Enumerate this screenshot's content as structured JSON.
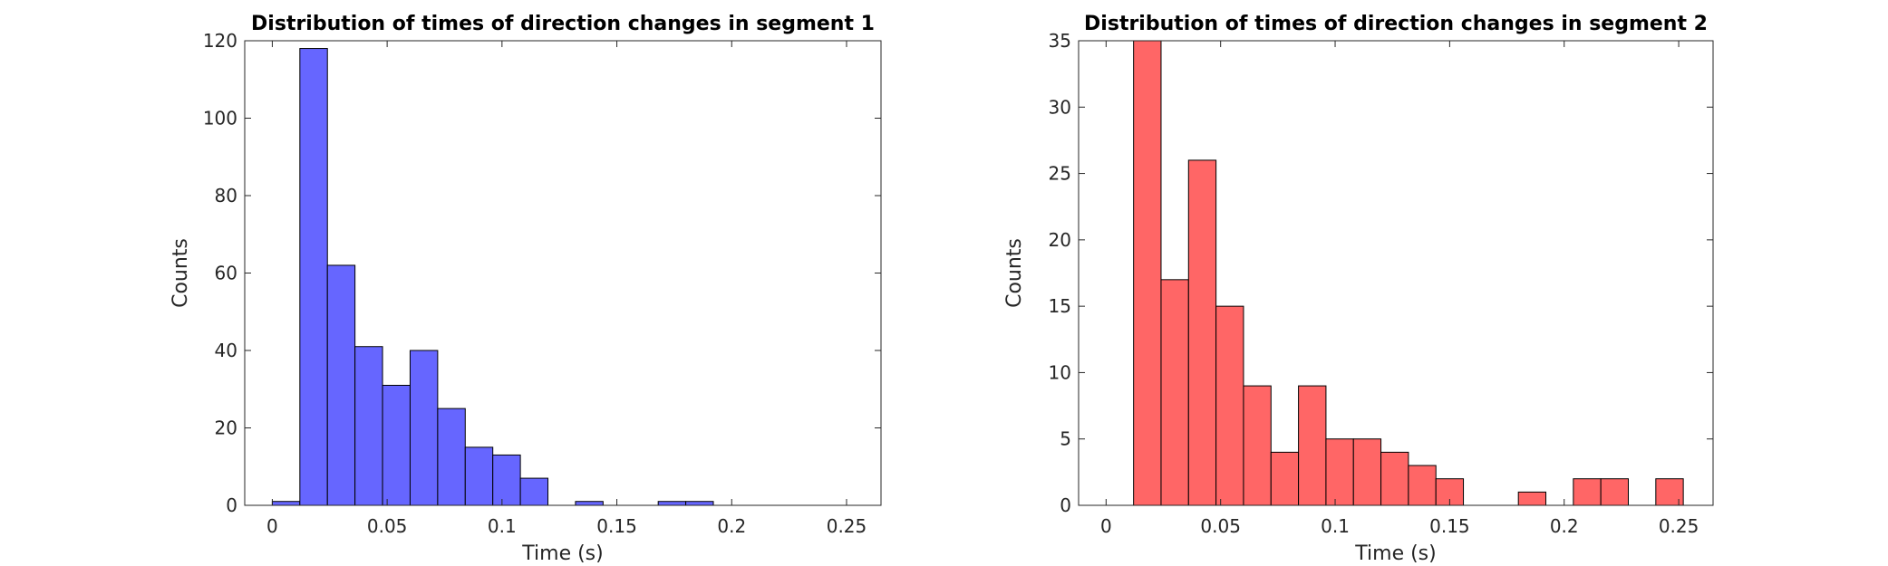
{
  "chart_data": [
    {
      "type": "bar",
      "title": "Distribution of times of direction changes in segment 1",
      "xlabel": "Time (s)",
      "ylabel": "Counts",
      "xlim": [
        -0.012,
        0.265
      ],
      "ylim": [
        0,
        120
      ],
      "xticks": [
        0,
        0.05,
        0.1,
        0.15,
        0.2,
        0.25
      ],
      "xtick_labels": [
        "0",
        "0.05",
        "0.1",
        "0.15",
        "0.2",
        "0.25"
      ],
      "yticks": [
        0,
        20,
        40,
        60,
        80,
        100,
        120
      ],
      "ytick_labels": [
        "0",
        "20",
        "40",
        "60",
        "80",
        "100",
        "120"
      ],
      "bin_width": 0.012,
      "bin_starts": [
        0.0,
        0.012,
        0.024,
        0.036,
        0.048,
        0.06,
        0.072,
        0.084,
        0.096,
        0.108,
        0.132,
        0.168,
        0.18
      ],
      "values": [
        1,
        118,
        62,
        41,
        31,
        40,
        25,
        15,
        13,
        7,
        1,
        1,
        1
      ],
      "color": "#6666ff",
      "grid": false
    },
    {
      "type": "bar",
      "title": "Distribution of times of direction changes in segment 2",
      "xlabel": "Time (s)",
      "ylabel": "Counts",
      "xlim": [
        -0.012,
        0.265
      ],
      "ylim": [
        0,
        35
      ],
      "xticks": [
        0,
        0.05,
        0.1,
        0.15,
        0.2,
        0.25
      ],
      "xtick_labels": [
        "0",
        "0.05",
        "0.1",
        "0.15",
        "0.2",
        "0.25"
      ],
      "yticks": [
        0,
        5,
        10,
        15,
        20,
        25,
        30,
        35
      ],
      "ytick_labels": [
        "0",
        "5",
        "10",
        "15",
        "20",
        "25",
        "30",
        "35"
      ],
      "bin_width": 0.012,
      "bin_starts": [
        0.012,
        0.024,
        0.036,
        0.048,
        0.06,
        0.072,
        0.084,
        0.096,
        0.108,
        0.12,
        0.132,
        0.144,
        0.18,
        0.204,
        0.216,
        0.24
      ],
      "values": [
        35,
        17,
        26,
        15,
        9,
        4,
        9,
        5,
        5,
        4,
        3,
        2,
        1,
        2,
        2,
        2
      ],
      "color": "#ff6666",
      "grid": false
    }
  ]
}
